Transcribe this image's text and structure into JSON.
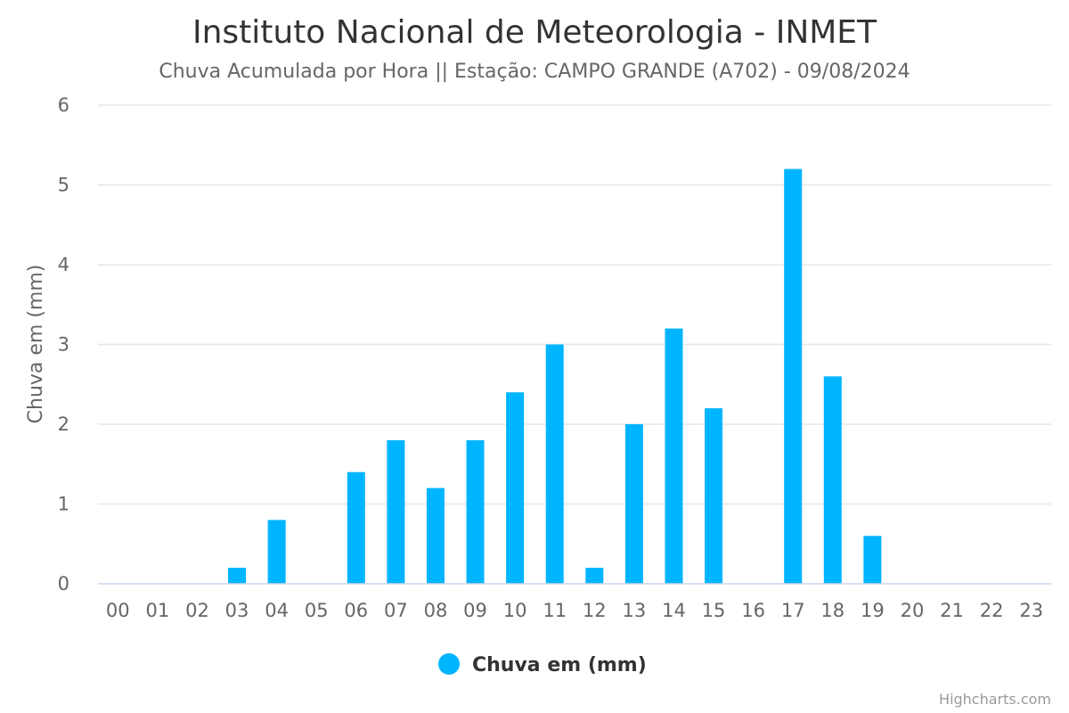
{
  "chart_data": {
    "type": "bar",
    "title": "Instituto Nacional de Meteorologia - INMET",
    "subtitle": "Chuva Acumulada por Hora || Estação: CAMPO GRANDE (A702) - 09/08/2024",
    "ylabel": "Chuva em (mm)",
    "xlabel": "",
    "ylim": [
      0,
      6
    ],
    "yticks": [
      "0",
      "1",
      "2",
      "3",
      "4",
      "5",
      "6"
    ],
    "categories": [
      "00",
      "01",
      "02",
      "03",
      "04",
      "05",
      "06",
      "07",
      "08",
      "09",
      "10",
      "11",
      "12",
      "13",
      "14",
      "15",
      "16",
      "17",
      "18",
      "19",
      "20",
      "21",
      "22",
      "23"
    ],
    "series": [
      {
        "name": "Chuva em (mm)",
        "color": "#00b5ff",
        "values": [
          0,
          0,
          0,
          0.2,
          0.8,
          0,
          1.4,
          1.8,
          1.2,
          1.8,
          2.4,
          3.0,
          0.2,
          2.0,
          3.2,
          2.2,
          0,
          5.2,
          2.6,
          0.6,
          0,
          0,
          0,
          0
        ]
      }
    ],
    "grid": true,
    "legend_position": "bottom-center"
  },
  "credits": "Highcharts.com"
}
